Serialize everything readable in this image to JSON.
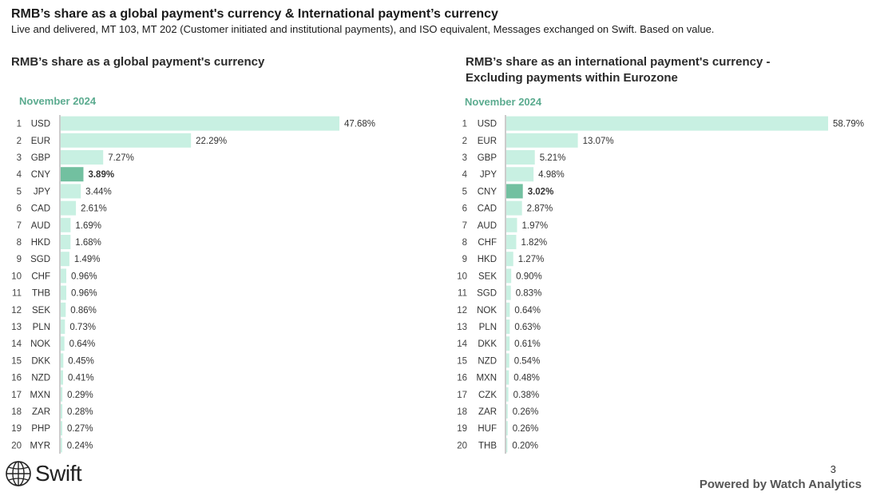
{
  "header": {
    "title": "RMB’s share as a global payment's currency & International payment’s currency",
    "subtitle": "Live and delivered, MT 103, MT 202 (Customer initiated and institutional payments), and ISO equivalent, Messages exchanged on Swift. Based on value."
  },
  "colors": {
    "bar": "#c8f0e2",
    "highlight": "#72c0a0",
    "period": "#5bab8f",
    "axis": "#9a9a9a"
  },
  "chart_data": [
    {
      "type": "bar",
      "orientation": "horizontal",
      "title": "RMB’s share as a global payment's currency",
      "period": "November 2024",
      "highlight": "CNY",
      "ranks": [
        1,
        2,
        3,
        4,
        5,
        6,
        7,
        8,
        9,
        10,
        11,
        12,
        13,
        14,
        15,
        16,
        17,
        18,
        19,
        20
      ],
      "categories": [
        "USD",
        "EUR",
        "GBP",
        "CNY",
        "JPY",
        "CAD",
        "AUD",
        "HKD",
        "SGD",
        "CHF",
        "THB",
        "SEK",
        "PLN",
        "NOK",
        "DKK",
        "NZD",
        "MXN",
        "ZAR",
        "PHP",
        "MYR"
      ],
      "values": [
        47.68,
        22.29,
        7.27,
        3.89,
        3.44,
        2.61,
        1.69,
        1.68,
        1.49,
        0.96,
        0.96,
        0.86,
        0.73,
        0.64,
        0.45,
        0.41,
        0.29,
        0.28,
        0.27,
        0.24
      ],
      "value_labels": [
        "47.68%",
        "22.29%",
        "7.27%",
        "3.89%",
        "3.44%",
        "2.61%",
        "1.69%",
        "1.68%",
        "1.49%",
        "0.96%",
        "0.96%",
        "0.86%",
        "0.73%",
        "0.64%",
        "0.45%",
        "0.41%",
        "0.29%",
        "0.28%",
        "0.27%",
        "0.24%"
      ]
    },
    {
      "type": "bar",
      "orientation": "horizontal",
      "title": "RMB’s share as an international payment's currency - Excluding payments within Eurozone",
      "period": "November 2024",
      "highlight": "CNY",
      "ranks": [
        1,
        2,
        3,
        4,
        5,
        6,
        7,
        8,
        9,
        10,
        11,
        12,
        13,
        14,
        15,
        16,
        17,
        18,
        19,
        20
      ],
      "categories": [
        "USD",
        "EUR",
        "GBP",
        "JPY",
        "CNY",
        "CAD",
        "AUD",
        "CHF",
        "HKD",
        "SEK",
        "SGD",
        "NOK",
        "PLN",
        "DKK",
        "NZD",
        "MXN",
        "CZK",
        "ZAR",
        "HUF",
        "THB"
      ],
      "values": [
        58.79,
        13.07,
        5.21,
        4.98,
        3.02,
        2.87,
        1.97,
        1.82,
        1.27,
        0.9,
        0.83,
        0.64,
        0.63,
        0.61,
        0.54,
        0.48,
        0.38,
        0.26,
        0.26,
        0.2
      ],
      "value_labels": [
        "58.79%",
        "13.07%",
        "5.21%",
        "4.98%",
        "3.02%",
        "2.87%",
        "1.97%",
        "1.82%",
        "1.27%",
        "0.90%",
        "0.83%",
        "0.64%",
        "0.63%",
        "0.61%",
        "0.54%",
        "0.48%",
        "0.38%",
        "0.26%",
        "0.26%",
        "0.20%"
      ]
    }
  ],
  "footer": {
    "logo_text": "Swift",
    "logo_icon": "globe-icon",
    "page_number": "3",
    "powered_by": "Powered by Watch Analytics"
  }
}
